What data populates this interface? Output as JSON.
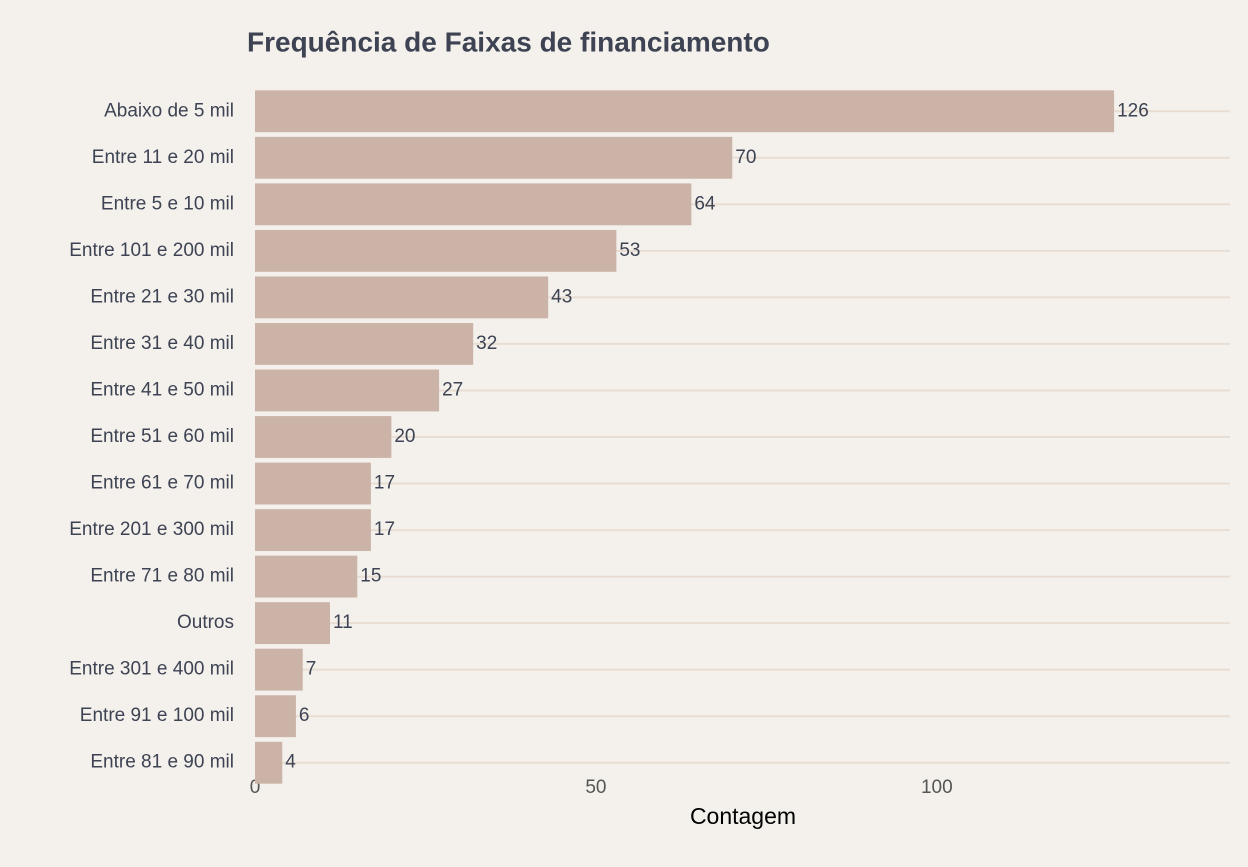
{
  "chart_data": {
    "type": "bar",
    "orientation": "horizontal",
    "title": "Frequência de Faixas de financiamento",
    "x_label": "Contagem",
    "categories": [
      "Abaixo de 5 mil",
      "Entre 11 e 20 mil",
      "Entre 5 e 10 mil",
      "Entre 101 e 200 mil",
      "Entre 21 e 30 mil",
      "Entre 31 e 40 mil",
      "Entre 41 e 50 mil",
      "Entre 51 e 60 mil",
      "Entre 61 e 70 mil",
      "Entre 201 e 300 mil",
      "Entre 71 e 80 mil",
      "Outros",
      "Entre 301 e 400 mil",
      "Entre 91 e 100 mil",
      "Entre 81 e 90 mil"
    ],
    "values": [
      126,
      70,
      64,
      53,
      43,
      32,
      27,
      20,
      17,
      17,
      15,
      11,
      7,
      6,
      4
    ],
    "color": "#cbb4a7",
    "xlim": [
      0,
      143
    ],
    "xticks": [
      0,
      50,
      100
    ],
    "grid": true
  }
}
